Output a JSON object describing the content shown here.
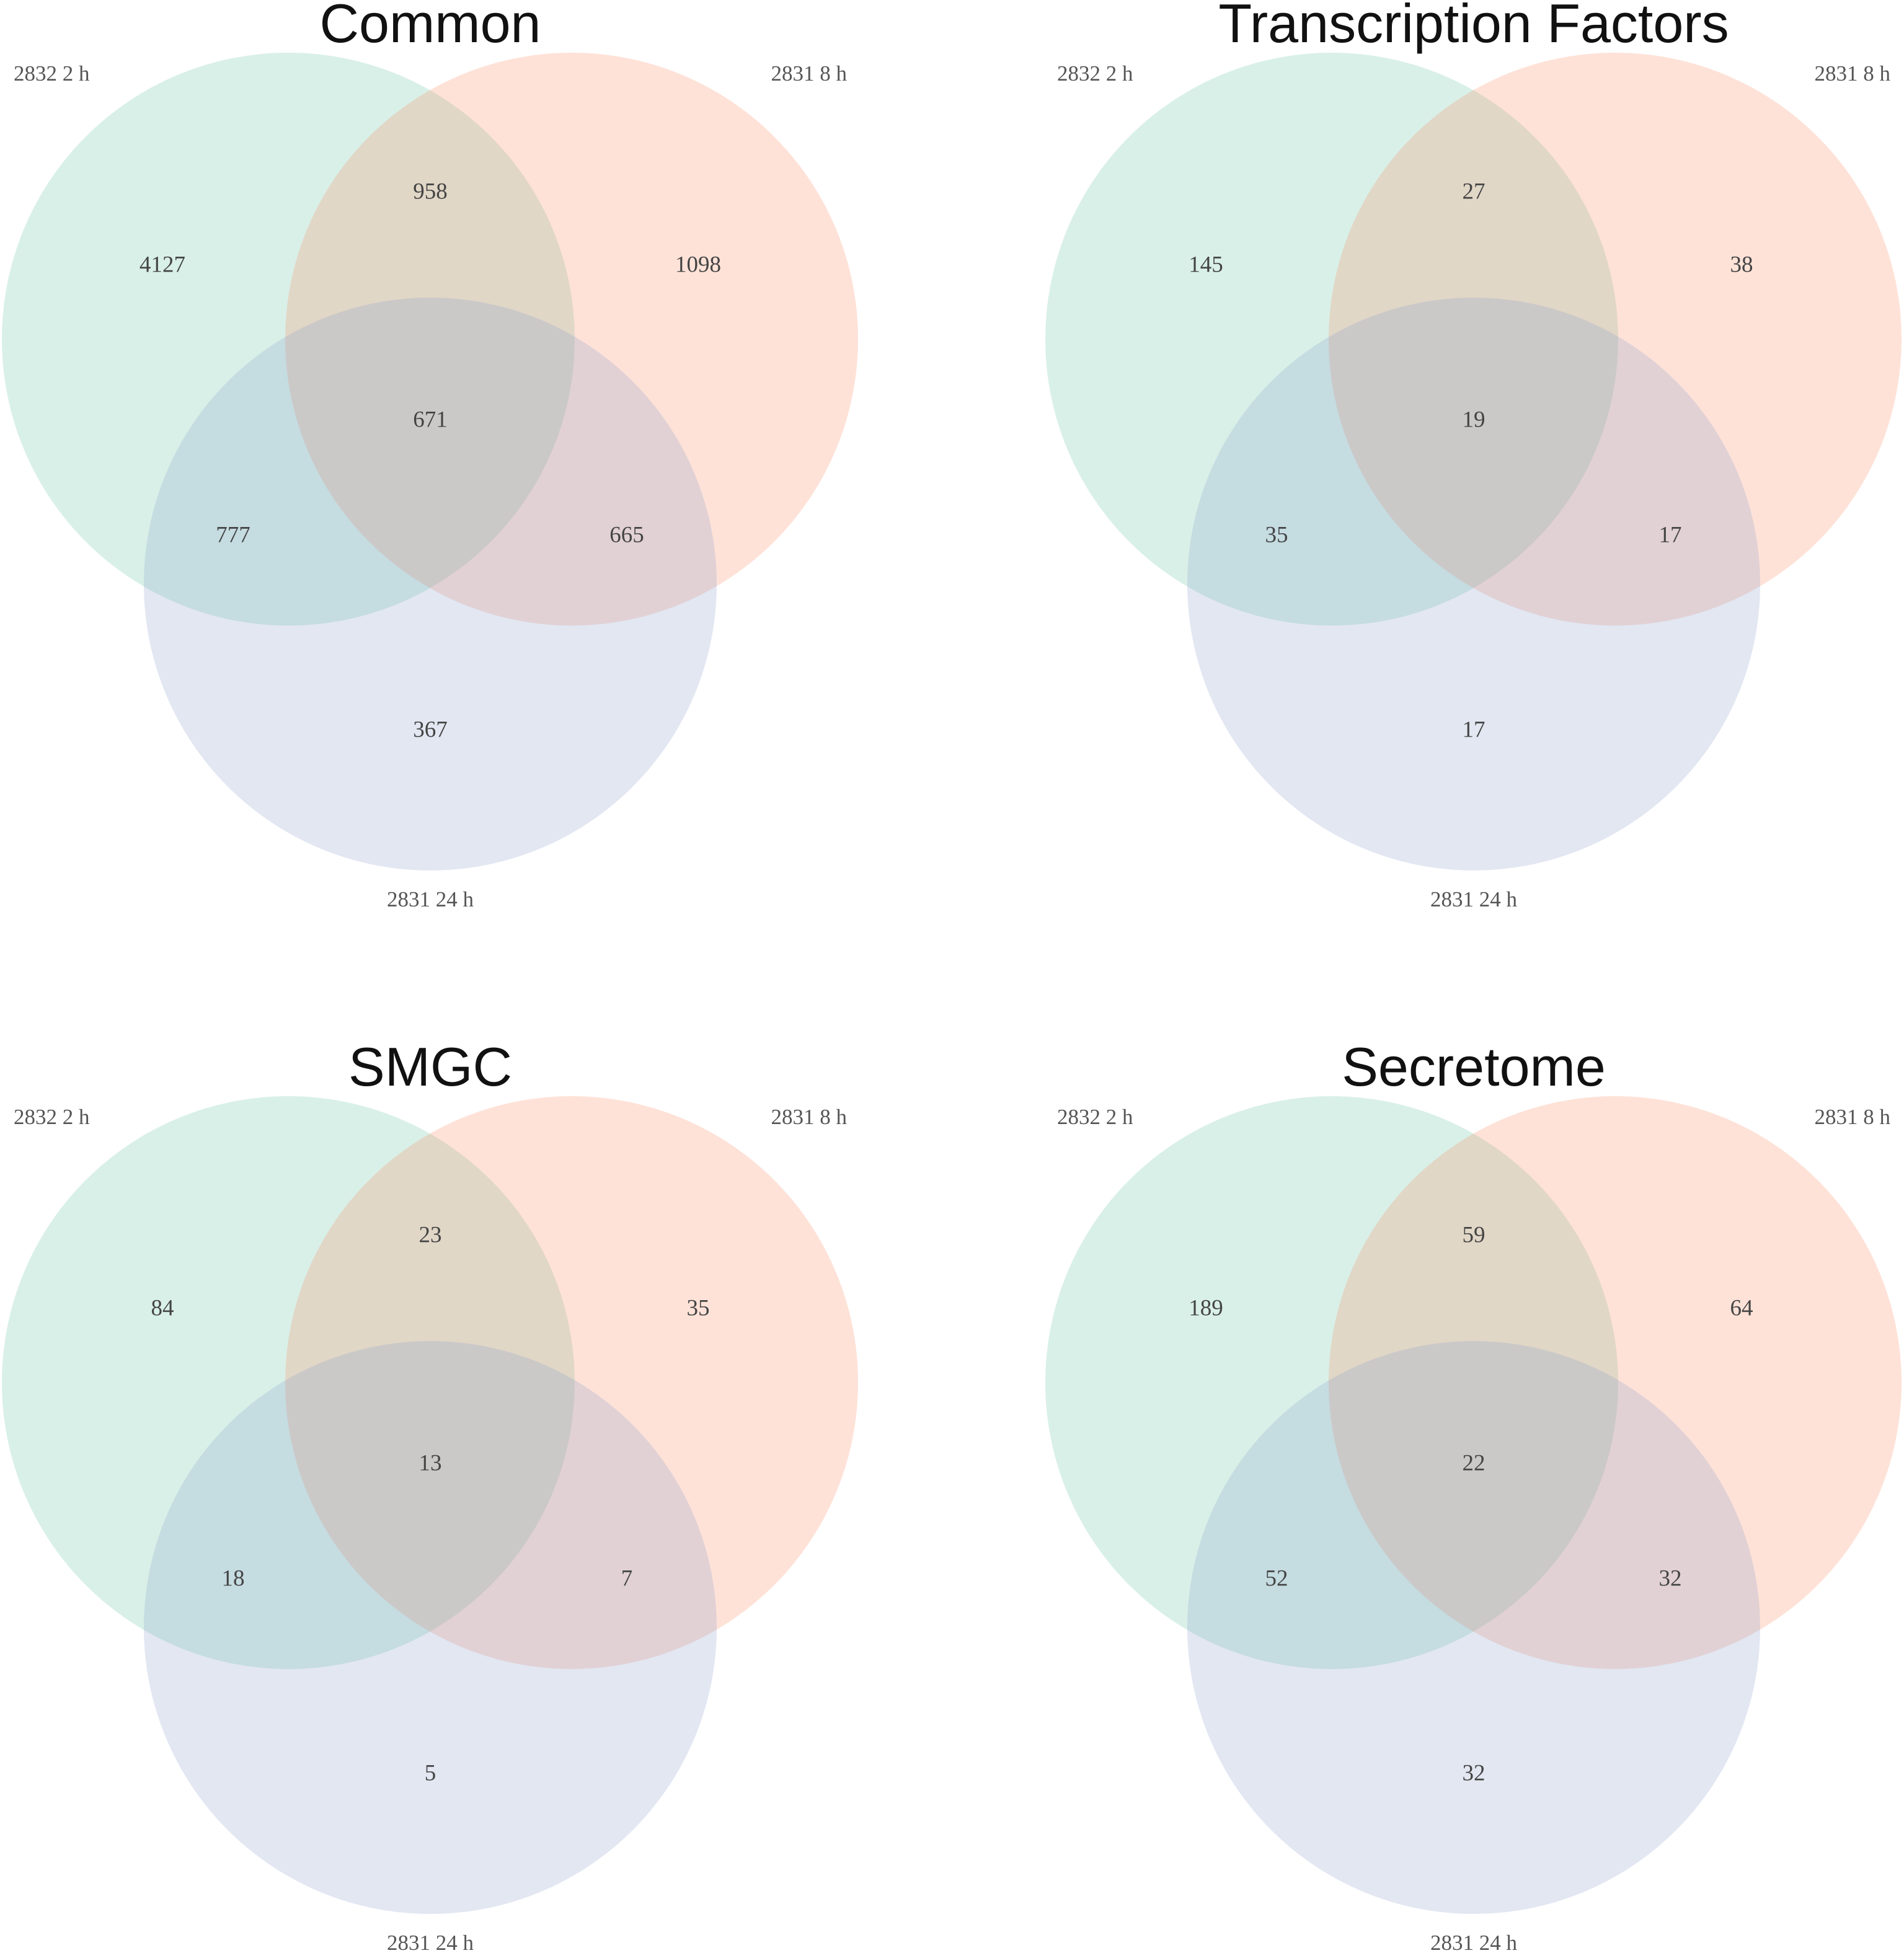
{
  "set_labels": [
    "2832 2 h",
    "2831 8 h",
    "2831 24 h"
  ],
  "colors": {
    "set_a": "#66c2a5",
    "set_b": "#fc8d62",
    "set_c": "#8da0cb"
  },
  "chart_data": [
    {
      "type": "venn",
      "title": "Common",
      "sets": [
        "2832 2 h",
        "2831 8 h",
        "2831 24 h"
      ],
      "regions": {
        "a_only": "4127",
        "b_only": "1098",
        "c_only": "367",
        "ab_only": "958",
        "ac_only": "777",
        "bc_only": "665",
        "abc": "671"
      }
    },
    {
      "type": "venn",
      "title": "Transcription Factors",
      "sets": [
        "2832 2 h",
        "2831 8 h",
        "2831 24 h"
      ],
      "regions": {
        "a_only": "145",
        "b_only": "38",
        "c_only": "17",
        "ab_only": "27",
        "ac_only": "35",
        "bc_only": "17",
        "abc": "19"
      }
    },
    {
      "type": "venn",
      "title": "SMGC",
      "sets": [
        "2832 2 h",
        "2831 8 h",
        "2831 24 h"
      ],
      "regions": {
        "a_only": "84",
        "b_only": "35",
        "c_only": "5",
        "ab_only": "23",
        "ac_only": "18",
        "bc_only": "7",
        "abc": "13"
      }
    },
    {
      "type": "venn",
      "title": "Secretome",
      "sets": [
        "2832 2 h",
        "2831 8 h",
        "2831 24 h"
      ],
      "regions": {
        "a_only": "189",
        "b_only": "64",
        "c_only": "32",
        "ab_only": "59",
        "ac_only": "52",
        "bc_only": "32",
        "abc": "22"
      }
    }
  ]
}
